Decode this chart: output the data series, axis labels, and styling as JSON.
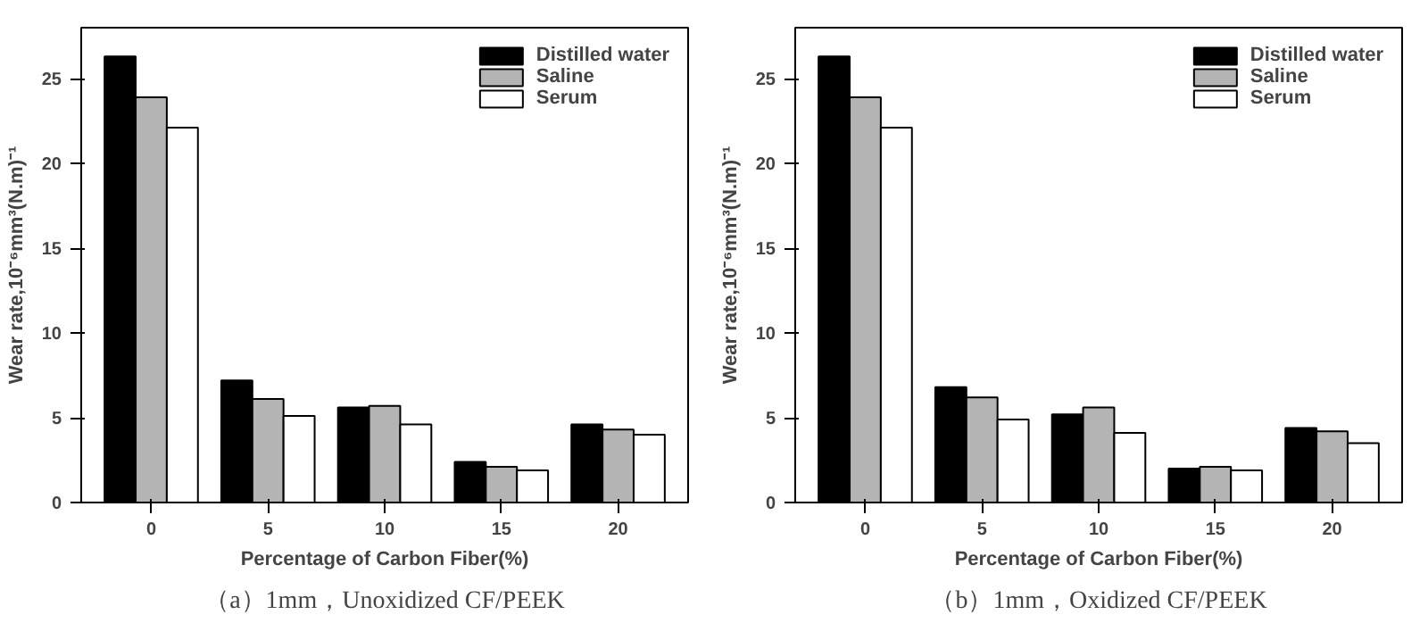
{
  "chart_data": [
    {
      "type": "bar",
      "title": "（a）1mm，Unoxidized CF/PEEK",
      "xlabel": "Percentage of Carbon Fiber(%)",
      "ylabel": "Wear rate,10⁻⁶mm³(N.m)⁻¹",
      "categories": [
        "0",
        "5",
        "10",
        "15",
        "20"
      ],
      "ylim": [
        0,
        28
      ],
      "yticks": [
        0,
        5,
        10,
        15,
        20,
        25
      ],
      "grid": false,
      "legend": "top right",
      "series": [
        {
          "name": "Distilled water",
          "color": "#000000",
          "values": [
            26.3,
            7.2,
            5.6,
            2.4,
            4.6
          ]
        },
        {
          "name": "Saline",
          "color": "#b4b4b4",
          "values": [
            23.9,
            6.1,
            5.7,
            2.1,
            4.3
          ]
        },
        {
          "name": "Serum",
          "color": "#ffffff",
          "values": [
            22.1,
            5.1,
            4.6,
            1.9,
            4.0
          ]
        }
      ]
    },
    {
      "type": "bar",
      "title": "（b）1mm，Oxidized CF/PEEK",
      "xlabel": "Percentage of Carbon Fiber(%)",
      "ylabel": "Wear rate,10⁻⁶mm³(N.m)⁻¹",
      "categories": [
        "0",
        "5",
        "10",
        "15",
        "20"
      ],
      "ylim": [
        0,
        28
      ],
      "yticks": [
        0,
        5,
        10,
        15,
        20,
        25
      ],
      "grid": false,
      "legend": "top right",
      "series": [
        {
          "name": "Distilled water",
          "color": "#000000",
          "values": [
            26.3,
            6.8,
            5.2,
            2.0,
            4.4
          ]
        },
        {
          "name": "Saline",
          "color": "#b4b4b4",
          "values": [
            23.9,
            6.2,
            5.6,
            2.1,
            4.2
          ]
        },
        {
          "name": "Serum",
          "color": "#ffffff",
          "values": [
            22.1,
            4.9,
            4.1,
            1.9,
            3.5
          ]
        }
      ]
    }
  ]
}
